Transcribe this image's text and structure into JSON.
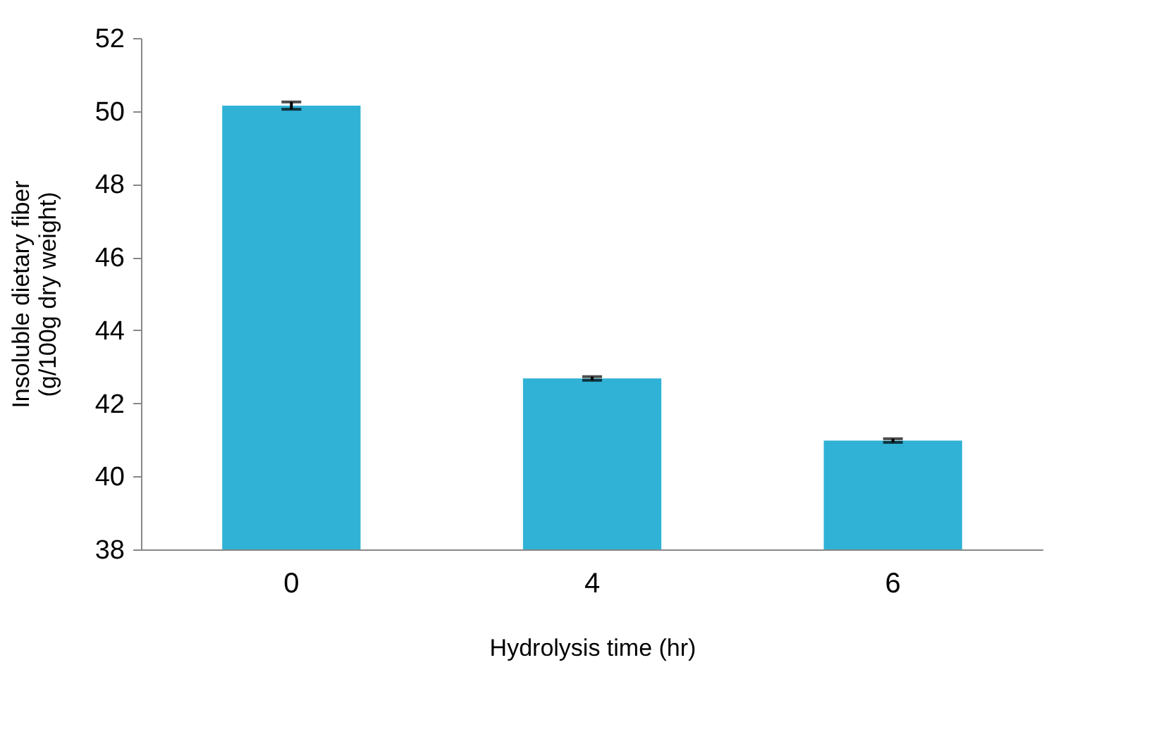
{
  "chart_data": {
    "type": "bar",
    "xlabel": "Hydrolysis time (hr)",
    "ylabel": "Insoluble dietary fiber\n(g/100g  dry weight)",
    "categories": [
      "0",
      "4",
      "6"
    ],
    "values": [
      50.15,
      42.68,
      40.98
    ],
    "errors": [
      0.1,
      0.05,
      0.05
    ],
    "color": "#2fb2d6",
    "ylim": [
      38,
      52
    ],
    "yticks": [
      38,
      40,
      42,
      44,
      46,
      48,
      50,
      52
    ],
    "grid": false
  }
}
